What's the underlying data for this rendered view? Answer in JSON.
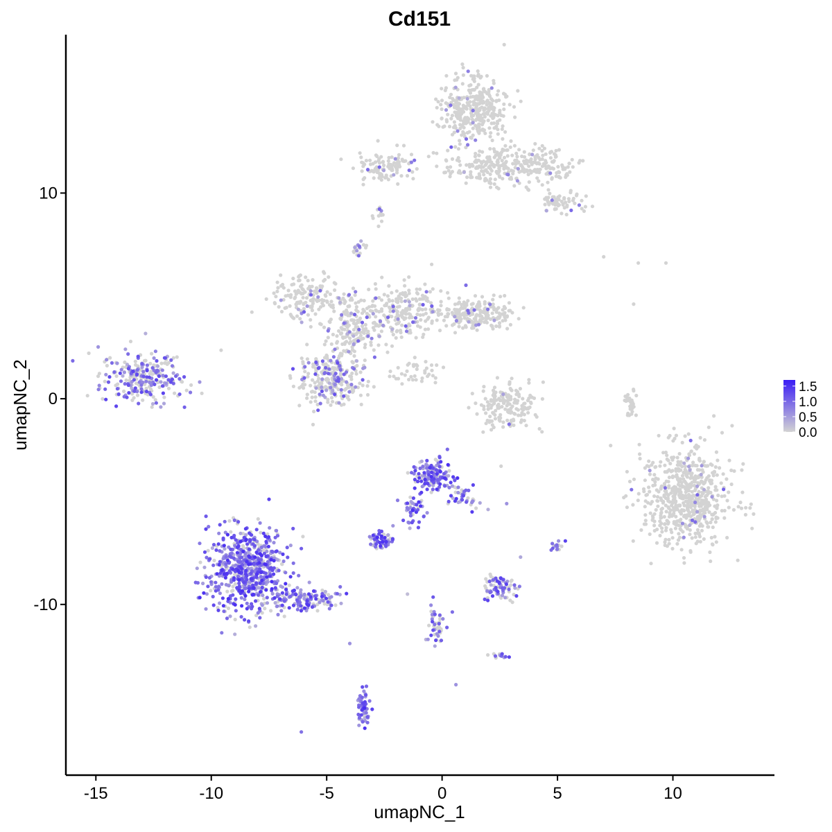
{
  "chart_data": {
    "type": "scatter",
    "title": "Cd151",
    "xlabel": "umapNC_1",
    "ylabel": "umapNC_2",
    "xlim": [
      -16.3,
      14.4
    ],
    "ylim": [
      -18.3,
      17.7
    ],
    "x_ticks": [
      -15,
      -10,
      -5,
      0,
      5,
      10
    ],
    "y_ticks": [
      -10,
      0,
      10
    ],
    "legend": {
      "placement": "right",
      "title": "",
      "min": 0.0,
      "max": 1.7,
      "labels": [
        "1.5",
        "1.0",
        "0.5",
        "0.0"
      ],
      "label_values": [
        1.5,
        1.0,
        0.5,
        0.0
      ],
      "color_low": "#d3d3d3",
      "color_high": "#3a1cf5"
    },
    "clusters": [
      {
        "cx": -13.0,
        "cy": 1.0,
        "sx": 1.2,
        "sy": 0.9,
        "n": 260,
        "expr": 0.55
      },
      {
        "cx": -8.5,
        "cy": -8.3,
        "sx": 1.1,
        "sy": 1.4,
        "n": 650,
        "expr": 0.85
      },
      {
        "cx": -6.0,
        "cy": -9.8,
        "sx": 1.1,
        "sy": 0.45,
        "n": 130,
        "expr": 0.7
      },
      {
        "cx": -6.0,
        "cy": 5.0,
        "sx": 0.9,
        "sy": 0.7,
        "n": 140,
        "expr": 0.08
      },
      {
        "cx": -4.8,
        "cy": 1.0,
        "sx": 1.0,
        "sy": 1.0,
        "n": 260,
        "expr": 0.28
      },
      {
        "cx": -3.8,
        "cy": 3.5,
        "sx": 0.9,
        "sy": 1.0,
        "n": 200,
        "expr": 0.12
      },
      {
        "cx": -1.5,
        "cy": 4.3,
        "sx": 1.0,
        "sy": 0.9,
        "n": 200,
        "expr": 0.1
      },
      {
        "cx": 1.5,
        "cy": 4.1,
        "sx": 1.1,
        "sy": 0.5,
        "n": 200,
        "expr": 0.06
      },
      {
        "cx": -2.5,
        "cy": 11.3,
        "sx": 0.9,
        "sy": 0.5,
        "n": 110,
        "expr": 0.05
      },
      {
        "cx": 1.4,
        "cy": 14.0,
        "sx": 0.9,
        "sy": 1.0,
        "n": 350,
        "expr": 0.02
      },
      {
        "cx": 2.0,
        "cy": 11.3,
        "sx": 1.4,
        "sy": 0.6,
        "n": 200,
        "expr": 0.03
      },
      {
        "cx": 4.5,
        "cy": 11.3,
        "sx": 0.8,
        "sy": 0.6,
        "n": 120,
        "expr": 0.06
      },
      {
        "cx": 5.2,
        "cy": 9.6,
        "sx": 0.6,
        "sy": 0.4,
        "n": 60,
        "expr": 0.05
      },
      {
        "cx": 2.9,
        "cy": -0.4,
        "sx": 0.8,
        "sy": 0.8,
        "n": 170,
        "expr": 0.02
      },
      {
        "cx": 10.6,
        "cy": -4.8,
        "sx": 1.3,
        "sy": 1.6,
        "n": 650,
        "expr": 0.03
      },
      {
        "cx": -0.4,
        "cy": -3.7,
        "sx": 0.6,
        "sy": 0.5,
        "n": 140,
        "expr": 0.85
      },
      {
        "cx": -1.2,
        "cy": -5.4,
        "sx": 0.4,
        "sy": 0.6,
        "n": 45,
        "expr": 0.85
      },
      {
        "cx": 0.8,
        "cy": -4.7,
        "sx": 0.5,
        "sy": 0.4,
        "n": 40,
        "expr": 0.7
      },
      {
        "cx": -2.6,
        "cy": -6.9,
        "sx": 0.35,
        "sy": 0.25,
        "n": 55,
        "expr": 0.9
      },
      {
        "cx": 2.5,
        "cy": -9.2,
        "sx": 0.5,
        "sy": 0.4,
        "n": 75,
        "expr": 0.55
      },
      {
        "cx": -3.4,
        "cy": -15.0,
        "sx": 0.2,
        "sy": 0.5,
        "n": 55,
        "expr": 0.95
      },
      {
        "cx": -0.3,
        "cy": -11.0,
        "sx": 0.3,
        "sy": 0.7,
        "n": 45,
        "expr": 0.65
      },
      {
        "cx": 2.4,
        "cy": -12.5,
        "sx": 0.3,
        "sy": 0.12,
        "n": 15,
        "expr": 0.6
      },
      {
        "cx": 5.0,
        "cy": -7.2,
        "sx": 0.2,
        "sy": 0.2,
        "n": 18,
        "expr": 0.6
      },
      {
        "cx": -3.6,
        "cy": 7.4,
        "sx": 0.2,
        "sy": 0.25,
        "n": 18,
        "expr": 0.4
      },
      {
        "cx": -2.7,
        "cy": 9.0,
        "sx": 0.2,
        "sy": 0.3,
        "n": 12,
        "expr": 0.05
      },
      {
        "cx": 8.2,
        "cy": -0.2,
        "sx": 0.2,
        "sy": 0.5,
        "n": 30,
        "expr": 0.0
      },
      {
        "cx": -1.3,
        "cy": 1.3,
        "sx": 0.6,
        "sy": 0.4,
        "n": 40,
        "expr": 0.0
      }
    ],
    "singletons": [
      {
        "x": -6.1,
        "y": -16.2,
        "v": 0.9
      },
      {
        "x": -4.0,
        "y": -11.9,
        "v": 0.6
      },
      {
        "x": 0.6,
        "y": -13.9,
        "v": 0.6
      },
      {
        "x": 2.8,
        "y": -5.1,
        "v": 0.6
      },
      {
        "x": 3.4,
        "y": -7.7,
        "v": 0.4
      },
      {
        "x": 1.3,
        "y": -5.5,
        "v": 1.4
      },
      {
        "x": 7.0,
        "y": 6.9,
        "v": 0.0
      },
      {
        "x": 8.3,
        "y": 4.6,
        "v": 0.0
      },
      {
        "x": 9.7,
        "y": 6.6,
        "v": 0.0
      },
      {
        "x": 8.5,
        "y": 6.6,
        "v": 0.0
      },
      {
        "x": -1.5,
        "y": -9.5,
        "v": 0.2
      }
    ]
  }
}
